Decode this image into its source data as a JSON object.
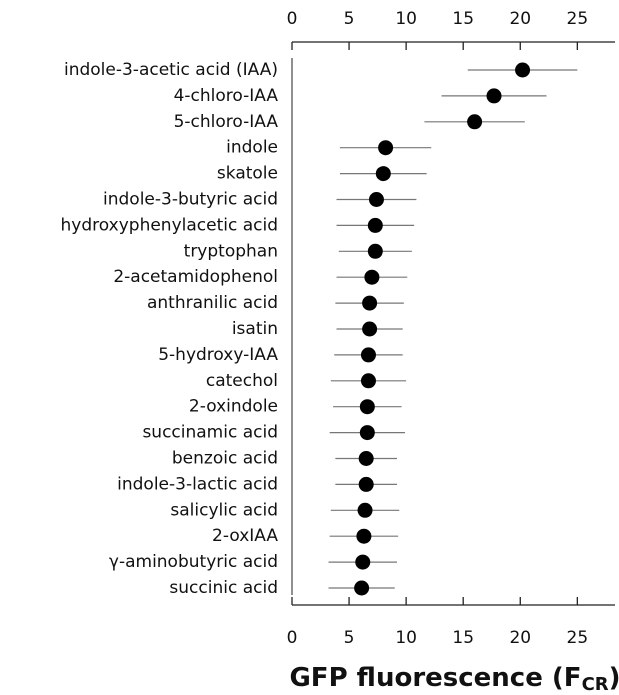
{
  "chart_data": {
    "type": "dotplot",
    "categories": [
      "indole-3-acetic acid (IAA)",
      "4-chloro-IAA",
      "5-chloro-IAA",
      "indole",
      "skatole",
      "indole-3-butyric acid",
      "hydroxyphenylacetic acid",
      "tryptophan",
      "2-acetamidophenol",
      "anthranilic acid",
      "isatin",
      "5-hydroxy-IAA",
      "catechol",
      "2-oxindole",
      "succinamic acid",
      "benzoic acid",
      "indole-3-lactic acid",
      "salicylic acid",
      "2-oxIAA",
      "γ-aminobutyric acid",
      "succinic acid"
    ],
    "values": [
      20.2,
      17.7,
      16.0,
      8.2,
      8.0,
      7.4,
      7.3,
      7.3,
      7.0,
      6.8,
      6.8,
      6.7,
      6.7,
      6.6,
      6.6,
      6.5,
      6.5,
      6.4,
      6.3,
      6.2,
      6.1
    ],
    "errors": [
      4.8,
      4.6,
      4.4,
      4.0,
      3.8,
      3.5,
      3.4,
      3.2,
      3.1,
      3.0,
      2.9,
      3.0,
      3.3,
      3.0,
      3.3,
      2.7,
      2.7,
      3.0,
      3.0,
      3.0,
      2.9
    ],
    "color": "#000000",
    "xlim": [
      0,
      28.3
    ],
    "xticks": [
      0,
      5,
      10,
      15,
      20,
      25
    ],
    "xlabel": {
      "text": "GFP fluorescence (F",
      "subscript": "CR",
      "suffix": ")"
    }
  }
}
